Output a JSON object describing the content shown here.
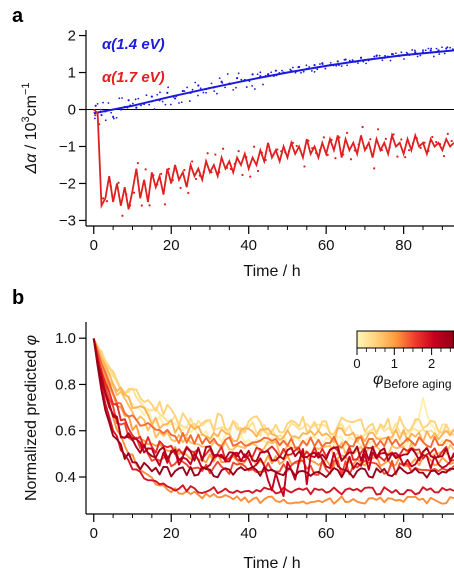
{
  "chart_data": [
    {
      "panel": "a",
      "type": "line",
      "xlabel": "Time / h",
      "ylabel_symbol": "Δα",
      "ylabel_unit": " / 10",
      "ylabel_exp": "3",
      "ylabel_unit2": "cm",
      "ylabel_exp2": "−1",
      "xlim": [
        -2,
        93
      ],
      "ylim": [
        -3.15,
        2.15
      ],
      "xticks": [
        0,
        20,
        40,
        60,
        80
      ],
      "yticks": [
        -3,
        -2,
        -1,
        0,
        1,
        2
      ],
      "zero_line": true,
      "series": [
        {
          "name": "α(1.4 eV)",
          "color": "#1a1adb",
          "fit_x": [
            0,
            10,
            20,
            30,
            40,
            50,
            60,
            70,
            80,
            93
          ],
          "fit_y": [
            -0.1,
            0.1,
            0.35,
            0.58,
            0.8,
            1.0,
            1.18,
            1.34,
            1.47,
            1.6
          ],
          "points_x": [
            0.5,
            2,
            3,
            5,
            7,
            9,
            11,
            13,
            15,
            17,
            19,
            21,
            23,
            25,
            27,
            29,
            31,
            33,
            35,
            37,
            39,
            41,
            43,
            45,
            47,
            49,
            51,
            53,
            55,
            57,
            59,
            61,
            63,
            65,
            67,
            69,
            71,
            73,
            75,
            77,
            79,
            81,
            83,
            85,
            87,
            89,
            91
          ],
          "points_y": [
            0.1,
            -0.15,
            -0.05,
            -0.2,
            0.0,
            0.25,
            0.05,
            0.15,
            0.35,
            0.25,
            0.45,
            0.3,
            0.5,
            0.45,
            0.65,
            0.55,
            0.6,
            0.75,
            0.7,
            0.85,
            0.8,
            0.95,
            0.9,
            0.95,
            1.05,
            1.0,
            1.05,
            1.15,
            1.1,
            1.2,
            1.25,
            1.2,
            1.3,
            1.35,
            1.3,
            1.4,
            1.35,
            1.45,
            1.4,
            1.5,
            1.45,
            1.5,
            1.55,
            1.55,
            1.6,
            1.6,
            1.65
          ]
        },
        {
          "name": "α(1.7 eV)",
          "color": "#e02020",
          "x": [
            0,
            1,
            2,
            3,
            4,
            5,
            6,
            7,
            8,
            9,
            10,
            11,
            12,
            13,
            14,
            15,
            16,
            17,
            18,
            19,
            20,
            21,
            22,
            23,
            24,
            25,
            26,
            27,
            28,
            29,
            30,
            31,
            32,
            33,
            34,
            35,
            36,
            37,
            38,
            39,
            40,
            41,
            42,
            43,
            44,
            45,
            46,
            47,
            48,
            49,
            50,
            51,
            52,
            53,
            54,
            55,
            56,
            57,
            58,
            59,
            60,
            61,
            62,
            63,
            64,
            65,
            66,
            67,
            68,
            69,
            70,
            71,
            72,
            73,
            74,
            75,
            76,
            77,
            78,
            79,
            80,
            81,
            82,
            83,
            84,
            85,
            86,
            87,
            88,
            89,
            90,
            91,
            92,
            93
          ],
          "y": [
            0.0,
            -0.1,
            -2.6,
            -2.4,
            -1.8,
            -2.5,
            -2.0,
            -2.6,
            -2.1,
            -2.7,
            -2.2,
            -1.6,
            -2.4,
            -1.9,
            -2.5,
            -1.7,
            -2.1,
            -1.8,
            -2.3,
            -1.6,
            -2.0,
            -1.5,
            -1.9,
            -1.7,
            -2.1,
            -1.5,
            -1.8,
            -1.6,
            -1.9,
            -1.4,
            -1.7,
            -1.5,
            -1.8,
            -1.3,
            -1.6,
            -1.4,
            -1.7,
            -1.3,
            -1.5,
            -1.2,
            -1.6,
            -1.3,
            -1.5,
            -1.1,
            -1.4,
            -0.9,
            -1.3,
            -1.1,
            -1.4,
            -1.0,
            -1.3,
            -0.9,
            -1.2,
            -1.0,
            -1.3,
            -0.8,
            -1.2,
            -1.0,
            -1.3,
            -0.9,
            -1.2,
            -0.8,
            -1.1,
            -0.7,
            -1.3,
            -0.8,
            -1.1,
            -0.9,
            -1.2,
            -0.7,
            -1.1,
            -0.9,
            -1.3,
            -0.8,
            -1.1,
            -0.9,
            -1.2,
            -0.7,
            -1.0,
            -0.9,
            -1.2,
            -0.8,
            -1.1,
            -0.7,
            -1.0,
            -0.9,
            -1.2,
            -0.8,
            -1.0,
            -0.9,
            -1.1,
            -0.8,
            -1.0,
            -0.9
          ]
        }
      ]
    },
    {
      "panel": "b",
      "type": "line",
      "xlabel": "Time / h",
      "ylabel_text": "Normalized predicted ",
      "ylabel_symbol": "φ",
      "xlim": [
        -2,
        93
      ],
      "ylim": [
        0.24,
        1.07
      ],
      "xticks": [
        0,
        20,
        40,
        60,
        80
      ],
      "yticks": [
        0.4,
        0.6,
        0.8,
        1.0
      ],
      "colorbar": {
        "label_symbol": "φ",
        "label_sub": "Before aging",
        "ticks": [
          "0",
          "1",
          "2"
        ],
        "range": [
          0,
          2.6
        ],
        "colors": [
          "#fff6b8",
          "#ffd27a",
          "#ff9a3c",
          "#ef3b2c",
          "#c4001e",
          "#8f0019"
        ]
      },
      "series": [
        {
          "level": 0.1,
          "end": 0.55,
          "drop": 0.9,
          "noise": 0.015,
          "bump_x": 85,
          "bump_h": 0.18
        },
        {
          "level": 0.3,
          "end": 0.6,
          "drop": 0.85,
          "noise": 0.02
        },
        {
          "level": 0.5,
          "end": 0.62,
          "drop": 0.8,
          "noise": 0.025
        },
        {
          "level": 0.7,
          "end": 0.52,
          "drop": 0.7,
          "noise": 0.02
        },
        {
          "level": 0.8,
          "end": 0.58,
          "drop": 0.65,
          "noise": 0.02
        },
        {
          "level": 1.0,
          "end": 0.47,
          "drop": 0.6,
          "noise": 0.015
        },
        {
          "level": 1.1,
          "end": 0.3,
          "drop": 0.55,
          "noise": 0.01
        },
        {
          "level": 1.3,
          "end": 0.55,
          "drop": 0.5,
          "noise": 0.015
        },
        {
          "level": 1.5,
          "end": 0.44,
          "drop": 0.45,
          "noise": 0.02
        },
        {
          "level": 1.7,
          "end": 0.5,
          "drop": 0.4,
          "noise": 0.02
        },
        {
          "level": 1.9,
          "end": 0.34,
          "drop": 0.35,
          "noise": 0.01
        },
        {
          "level": 2.1,
          "end": 0.47,
          "drop": 0.3,
          "noise": 0.025,
          "bump_x": 47,
          "bump_h": -0.08
        },
        {
          "level": 2.3,
          "end": 0.5,
          "drop": 0.25,
          "noise": 0.02
        },
        {
          "level": 2.5,
          "end": 0.42,
          "drop": 0.2,
          "noise": 0.015
        }
      ]
    }
  ]
}
